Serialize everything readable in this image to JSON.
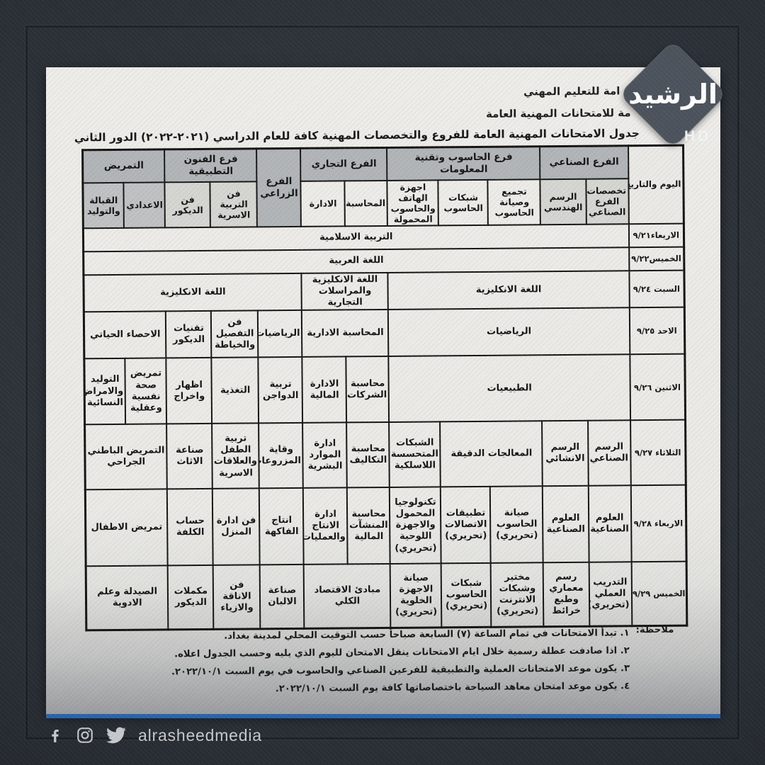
{
  "brand": {
    "logo_text": "الرشيد",
    "hd_label": "HD",
    "logo_diamond_color": "#4c535c",
    "accent_blue": "#2a64ad"
  },
  "document": {
    "org_line1": "امة للتعليم المهني",
    "org_line2": "مة للامتحانات المهنية العامة",
    "title": "جدول الامتحانات المهنية العامة للفروع والتخصصات المهنية كافة للعام الدراسي (٢٠٢١-٢٠٢٢) الدور الثاني"
  },
  "table": {
    "date_header": "اليوم والتاريخ",
    "groups": [
      {
        "label": "الفرع الصناعي",
        "cols": [
          {
            "label": "تخصصات الفرع الصناعي",
            "shade": "l"
          },
          {
            "label": "الرسم الهندسي",
            "shade": "l"
          }
        ]
      },
      {
        "label": "فرع الحاسوب وتقنية المعلومات",
        "cols": [
          {
            "label": "تجميع وصيانة الحاسوب",
            "shade": "w"
          },
          {
            "label": "شبكات الحاسوب",
            "shade": "w"
          },
          {
            "label": "اجهزة الهاتف والحاسوب المحمولة",
            "shade": "w"
          }
        ]
      },
      {
        "label": "الفرع التجاري",
        "cols": [
          {
            "label": "المحاسبة",
            "shade": "w"
          },
          {
            "label": "الادارة",
            "shade": "w"
          }
        ]
      },
      {
        "label": "الفرع الزراعي",
        "cols": []
      },
      {
        "label": "فرع الفنون التطبيقية",
        "cols": [
          {
            "label": "فن التربية الاسرية",
            "shade": "l"
          },
          {
            "label": "فن الديكور",
            "shade": "l"
          }
        ]
      },
      {
        "label": "التمريض",
        "cols": [
          {
            "label": "الاعدادي",
            "shade": "g"
          },
          {
            "label": "القبالة والتوليد",
            "shade": "g"
          }
        ]
      }
    ],
    "rows": [
      {
        "date": "الاربعاء٩/٢١",
        "cells": [
          {
            "t": "التربية الاسلامية",
            "s": 12
          }
        ]
      },
      {
        "date": "الخميس٩/٢٢",
        "cells": [
          {
            "t": "اللغة العربية",
            "s": 12
          }
        ]
      },
      {
        "date": "السبت ٩/٢٤",
        "cells": [
          {
            "t": "اللغة الانكليزية",
            "s": 5
          },
          {
            "t": "اللغة الانكليزية والمراسلات التجارية",
            "s": 2
          },
          {
            "t": "اللغة الانكليزية",
            "s": 5
          }
        ]
      },
      {
        "date": "الاحد ٩/٢٥",
        "cells": [
          {
            "t": "الرياضيات",
            "s": 5
          },
          {
            "t": "المحاسبة الادارية",
            "s": 2
          },
          {
            "t": "الرياضيات",
            "s": 1
          },
          {
            "t": "فن التفصيل والخياطة",
            "s": 1
          },
          {
            "t": "تقنيات الديكور",
            "s": 1
          },
          {
            "t": "الاحصاء الحياتي",
            "s": 2
          }
        ]
      },
      {
        "date": "الاثنين ٩/٢٦",
        "cells": [
          {
            "t": "الطبيعيات",
            "s": 5
          },
          {
            "t": "محاسبة الشركات",
            "s": 1
          },
          {
            "t": "الادارة المالية",
            "s": 1
          },
          {
            "t": "تربية الدواجن",
            "s": 1
          },
          {
            "t": "التغذية",
            "s": 1
          },
          {
            "t": "اظهار واخراج",
            "s": 1
          },
          {
            "t": "تمريض صحة نفسية وعقلية",
            "s": 1
          },
          {
            "t": "التوليد والامراض النسائية",
            "s": 1
          }
        ]
      },
      {
        "date": "الثلاثاء ٩/٢٧",
        "cells": [
          {
            "t": "الرسم الصناعي",
            "s": 1
          },
          {
            "t": "الرسم الانشائي",
            "s": 1
          },
          {
            "t": "المعالجات الدقيقة",
            "s": 2
          },
          {
            "t": "الشبكات المتحسسة اللاسلكية",
            "s": 1
          },
          {
            "t": "محاسبة التكاليف",
            "s": 1
          },
          {
            "t": "ادارة الموارد البشرية",
            "s": 1
          },
          {
            "t": "وقاية المزروعات",
            "s": 1
          },
          {
            "t": "تربية الطفل والعلاقات الاسرية",
            "s": 1
          },
          {
            "t": "صناعة الاثاث",
            "s": 1
          },
          {
            "t": "التمريض الباطني الجراحي",
            "s": 2
          }
        ]
      },
      {
        "date": "الاربعاء ٩/٢٨",
        "cells": [
          {
            "t": "العلوم الصناعية",
            "s": 1
          },
          {
            "t": "العلوم الصناعية",
            "s": 1
          },
          {
            "t": "صيانة الحاسوب (تحريري)",
            "s": 1
          },
          {
            "t": "تطبيقات الاتصالات (تحريري)",
            "s": 1
          },
          {
            "t": "تكنولوجيا المحمول والاجهزة اللوحية (تحريري)",
            "s": 1
          },
          {
            "t": "محاسبة المنشآت المالية",
            "s": 1
          },
          {
            "t": "ادارة الانتاج والعمليات",
            "s": 1
          },
          {
            "t": "انتاج الفاكهة",
            "s": 1
          },
          {
            "t": "فن ادارة المنزل",
            "s": 1
          },
          {
            "t": "حساب الكلفة",
            "s": 1
          },
          {
            "t": "تمريض الاطفال",
            "s": 2
          }
        ]
      },
      {
        "date": "الخميس ٩/٢٩",
        "cells": [
          {
            "t": "التدريب العملي (تحريري)",
            "s": 1
          },
          {
            "t": "رسم معماري وطبع خرائط",
            "s": 1
          },
          {
            "t": "مختبر وشبكات الانترنت (تحريري)",
            "s": 1
          },
          {
            "t": "شبكات الحاسوب (تحريري)",
            "s": 1
          },
          {
            "t": "صيانة الاجهزة الخلوية (تحريري)",
            "s": 1
          },
          {
            "t": "مبادئ الاقتصاد الكلي",
            "s": 2
          },
          {
            "t": "صناعة الالبان",
            "s": 1
          },
          {
            "t": "فن الاناقة والازياء",
            "s": 1
          },
          {
            "t": "مكملات الديكور",
            "s": 1
          },
          {
            "t": "الصيدلة وعلم الادوية",
            "s": 2
          }
        ]
      }
    ]
  },
  "notes": {
    "label": "ملاحظة:",
    "items": [
      "١. تبدأ الامتحانات في تمام الساعة (٧) السابعة صباحاً حسب التوقيت المحلي لمدينة بغداد.",
      "٢. اذا صادفت عطلة رسمية خلال ايام الامتحانات ينقل الامتحان لليوم الذي يليه وحسب الجدول اعلاه.",
      "٣. يكون موعد الامتحانات العملية والتطبيقية للفرعين الصناعي والحاسوب في يوم السبت ٢٠٢٢/١٠/١.",
      "٤. يكون موعد امتحان معاهد السياحة باختصاصاتها كافة يوم السبت ٢٠٢٢/١٠/١."
    ]
  },
  "footer": {
    "handle": "alrasheedmedia",
    "icons": [
      "facebook-icon",
      "instagram-icon",
      "twitter-icon"
    ]
  }
}
